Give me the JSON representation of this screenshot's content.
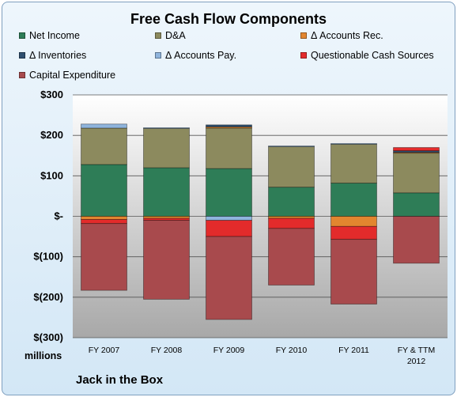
{
  "chart_data": {
    "type": "bar",
    "stacked": true,
    "title": "Free Cash Flow Components",
    "units_label": "millions",
    "company": "Jack in the Box",
    "categories": [
      "FY 2007",
      "FY 2008",
      "FY 2009",
      "FY 2010",
      "FY 2011",
      "FY & TTM 2012"
    ],
    "ylim": [
      -300,
      300
    ],
    "yticks": [
      300,
      200,
      100,
      0,
      -100,
      -200,
      -300
    ],
    "ytick_labels": [
      "$300",
      "$200",
      "$100",
      "$-",
      "$(100)",
      "$(200)",
      "$(300)"
    ],
    "grid": true,
    "legend_position": "top",
    "series": [
      {
        "name": "Net Income",
        "color": "#2e7d57",
        "values": [
          128,
          120,
          118,
          72,
          82,
          58
        ]
      },
      {
        "name": "D&A",
        "color": "#8c8a5e",
        "values": [
          90,
          97,
          100,
          100,
          96,
          98
        ]
      },
      {
        "name": "Δ Accounts Rec.",
        "color": "#e2862f",
        "values": [
          -8,
          -5,
          3,
          -5,
          -25,
          2
        ]
      },
      {
        "name": "Δ Inventories",
        "color": "#2f4f6f",
        "values": [
          0,
          0,
          5,
          0,
          0,
          4
        ]
      },
      {
        "name": "Δ Accounts Pay.",
        "color": "#8fb4dc",
        "values": [
          10,
          2,
          -10,
          2,
          2,
          0
        ]
      },
      {
        "name": "Questionable Cash Sources",
        "color": "#e32b2b",
        "values": [
          -10,
          -5,
          -40,
          -25,
          -32,
          8
        ]
      },
      {
        "name": "Capital Expenditure",
        "color": "#a84a4d",
        "values": [
          -165,
          -195,
          -205,
          -140,
          -160,
          -116
        ]
      }
    ]
  }
}
